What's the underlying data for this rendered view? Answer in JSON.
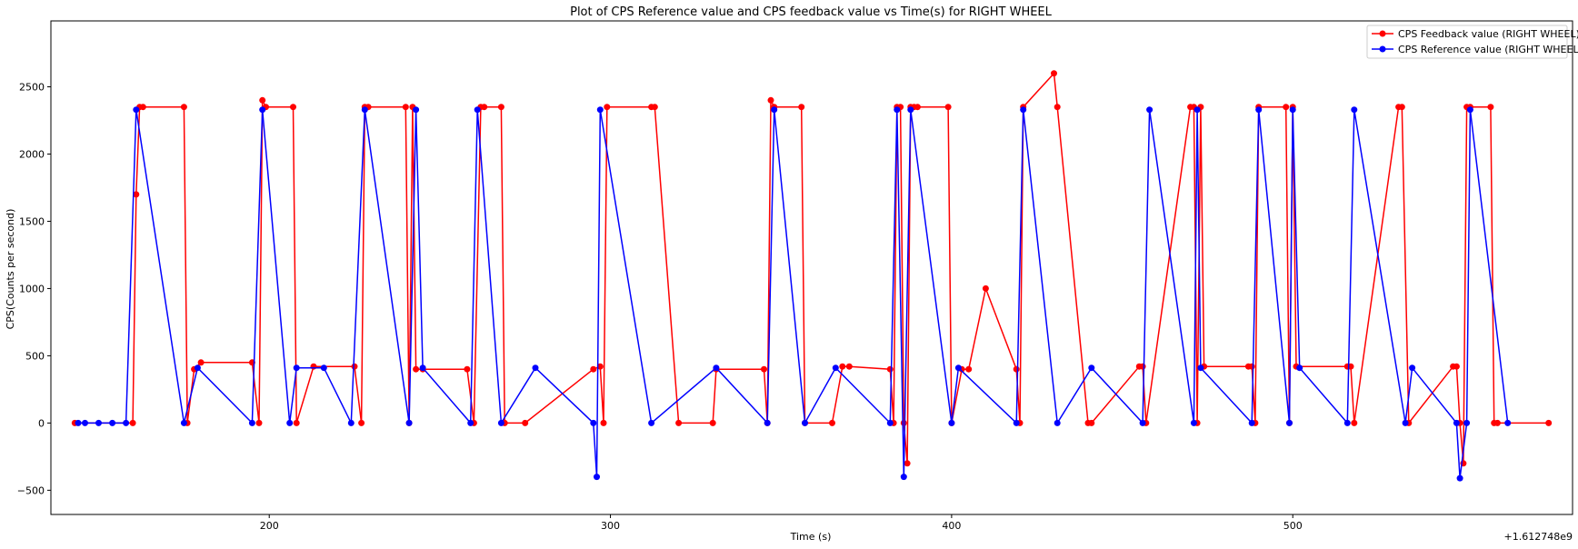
{
  "chart_data": {
    "type": "line",
    "title": "Plot of CPS Reference value and CPS feedback value vs Time(s) for RIGHT WHEEL",
    "xlabel": "Time (s)",
    "ylabel": "CPS(Counts per second)",
    "offset_text": "+1.612748e9",
    "xlim": [
      136,
      582
    ],
    "ylim": [
      -680,
      2990
    ],
    "xticks": [
      200,
      300,
      400,
      500
    ],
    "xtick_labels": [
      "200",
      "300",
      "400",
      "500"
    ],
    "yticks": [
      -500,
      0,
      500,
      1000,
      1500,
      2000,
      2500
    ],
    "ytick_labels": [
      "−500",
      "0",
      "500",
      "1000",
      "1500",
      "2000",
      "2500"
    ],
    "grid": false,
    "legend": "top-right",
    "series": [
      {
        "name": "CPS Feedback value (RIGHT WHEEL)",
        "color": "#ff0000",
        "marker": "circle",
        "x": [
          143,
          160,
          161,
          162,
          163,
          175,
          176,
          178,
          180,
          195,
          197,
          198,
          199,
          207,
          208,
          213,
          225,
          227,
          228,
          229,
          240,
          241,
          242,
          243,
          245,
          258,
          260,
          262,
          263,
          268,
          269,
          275,
          295,
          297,
          298,
          299,
          312,
          313,
          320,
          330,
          331,
          345,
          346,
          347,
          348,
          356,
          357,
          365,
          368,
          370,
          382,
          383,
          384,
          385,
          386,
          387,
          388,
          389,
          390,
          399,
          400,
          403,
          405,
          410,
          419,
          420,
          421,
          430,
          431,
          440,
          441,
          455,
          456,
          457,
          470,
          471,
          472,
          473,
          474,
          487,
          488,
          489,
          490,
          498,
          499,
          500,
          501,
          516,
          517,
          518,
          531,
          532,
          534,
          547,
          548,
          549,
          550,
          551,
          552,
          558,
          559,
          560,
          575
        ],
        "y": [
          0,
          0,
          1700,
          2350,
          2350,
          2350,
          0,
          400,
          450,
          450,
          0,
          2400,
          2350,
          2350,
          0,
          420,
          420,
          0,
          2350,
          2350,
          2350,
          0,
          2350,
          400,
          400,
          400,
          0,
          2350,
          2350,
          2350,
          0,
          0,
          400,
          420,
          0,
          2350,
          2350,
          2350,
          0,
          0,
          400,
          400,
          0,
          2400,
          2350,
          2350,
          0,
          0,
          420,
          420,
          400,
          0,
          2350,
          2350,
          0,
          -300,
          2350,
          2350,
          2350,
          2350,
          0,
          400,
          400,
          1000,
          400,
          0,
          2350,
          2600,
          2350,
          0,
          0,
          420,
          420,
          0,
          2350,
          2350,
          0,
          2350,
          420,
          420,
          420,
          0,
          2350,
          2350,
          0,
          2350,
          420,
          420,
          420,
          0,
          2350,
          2350,
          0,
          420,
          420,
          0,
          -300,
          2350,
          2350,
          2350,
          0,
          0,
          0
        ]
      },
      {
        "name": "CPS Reference value (RIGHT WHEEL)",
        "color": "#0000ff",
        "marker": "circle",
        "x": [
          144,
          146,
          150,
          154,
          158,
          161,
          175,
          179,
          195,
          198,
          206,
          208,
          216,
          224,
          228,
          241,
          243,
          245,
          259,
          261,
          268,
          278,
          295,
          296,
          297,
          312,
          331,
          346,
          348,
          357,
          366,
          382,
          384,
          386,
          388,
          400,
          402,
          419,
          421,
          431,
          441,
          456,
          458,
          471,
          472,
          473,
          488,
          490,
          499,
          500,
          502,
          516,
          518,
          533,
          535,
          548,
          549,
          551,
          552,
          563
        ],
        "y": [
          0,
          0,
          0,
          0,
          0,
          2330,
          0,
          410,
          0,
          2330,
          0,
          410,
          410,
          0,
          2330,
          0,
          2330,
          410,
          0,
          2330,
          0,
          410,
          0,
          -400,
          2330,
          0,
          410,
          0,
          2330,
          0,
          410,
          0,
          2330,
          -400,
          2330,
          0,
          410,
          0,
          2330,
          0,
          410,
          0,
          2330,
          0,
          2330,
          410,
          0,
          2330,
          0,
          2330,
          410,
          0,
          2330,
          0,
          410,
          0,
          -410,
          0,
          2330,
          0
        ]
      }
    ]
  }
}
